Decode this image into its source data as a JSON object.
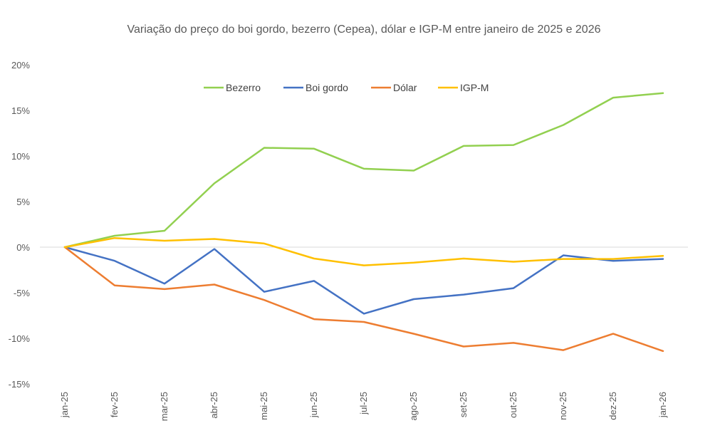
{
  "chart_data": {
    "type": "line",
    "title": "Variação do preço do boi gordo, bezerro (Cepea), dólar e IGP-M entre janeiro de 2025 e 2026",
    "xlabel": "",
    "ylabel": "",
    "categories": [
      "jan-25",
      "fev-25",
      "mar-25",
      "abr-25",
      "mai-25",
      "jun-25",
      "jul-25",
      "ago-25",
      "set-25",
      "out-25",
      "nov-25",
      "dez-25",
      "jan-26"
    ],
    "ylim": [
      -15,
      20
    ],
    "yticks": [
      20,
      15,
      10,
      5,
      0,
      -5,
      -10,
      -15
    ],
    "ytick_labels": [
      "20%",
      "15%",
      "10%",
      "5%",
      "0%",
      "-5%",
      "-10%",
      "-15%"
    ],
    "grid": false,
    "legend_position": "top",
    "series": [
      {
        "name": "Bezerro",
        "color": "#92D050",
        "values": [
          0,
          1.25,
          1.8,
          7.0,
          10.9,
          10.8,
          8.6,
          8.4,
          11.1,
          11.2,
          13.4,
          16.4,
          16.9
        ]
      },
      {
        "name": "Boi gordo",
        "color": "#4472C4",
        "values": [
          0,
          -1.5,
          -4.0,
          -0.2,
          -4.9,
          -3.7,
          -7.3,
          -5.7,
          -5.2,
          -4.5,
          -0.9,
          -1.5,
          -1.3
        ]
      },
      {
        "name": "Dólar",
        "color": "#ED7D31",
        "values": [
          0,
          -4.2,
          -4.6,
          -4.1,
          -5.8,
          -7.9,
          -8.2,
          -9.5,
          -10.9,
          -10.5,
          -11.3,
          -9.5,
          -11.4
        ]
      },
      {
        "name": "IGP-M",
        "color": "#FFC000",
        "values": [
          0,
          1.0,
          0.7,
          0.9,
          0.4,
          -1.25,
          -2.0,
          -1.7,
          -1.25,
          -1.6,
          -1.3,
          -1.3,
          -0.95
        ]
      }
    ]
  }
}
